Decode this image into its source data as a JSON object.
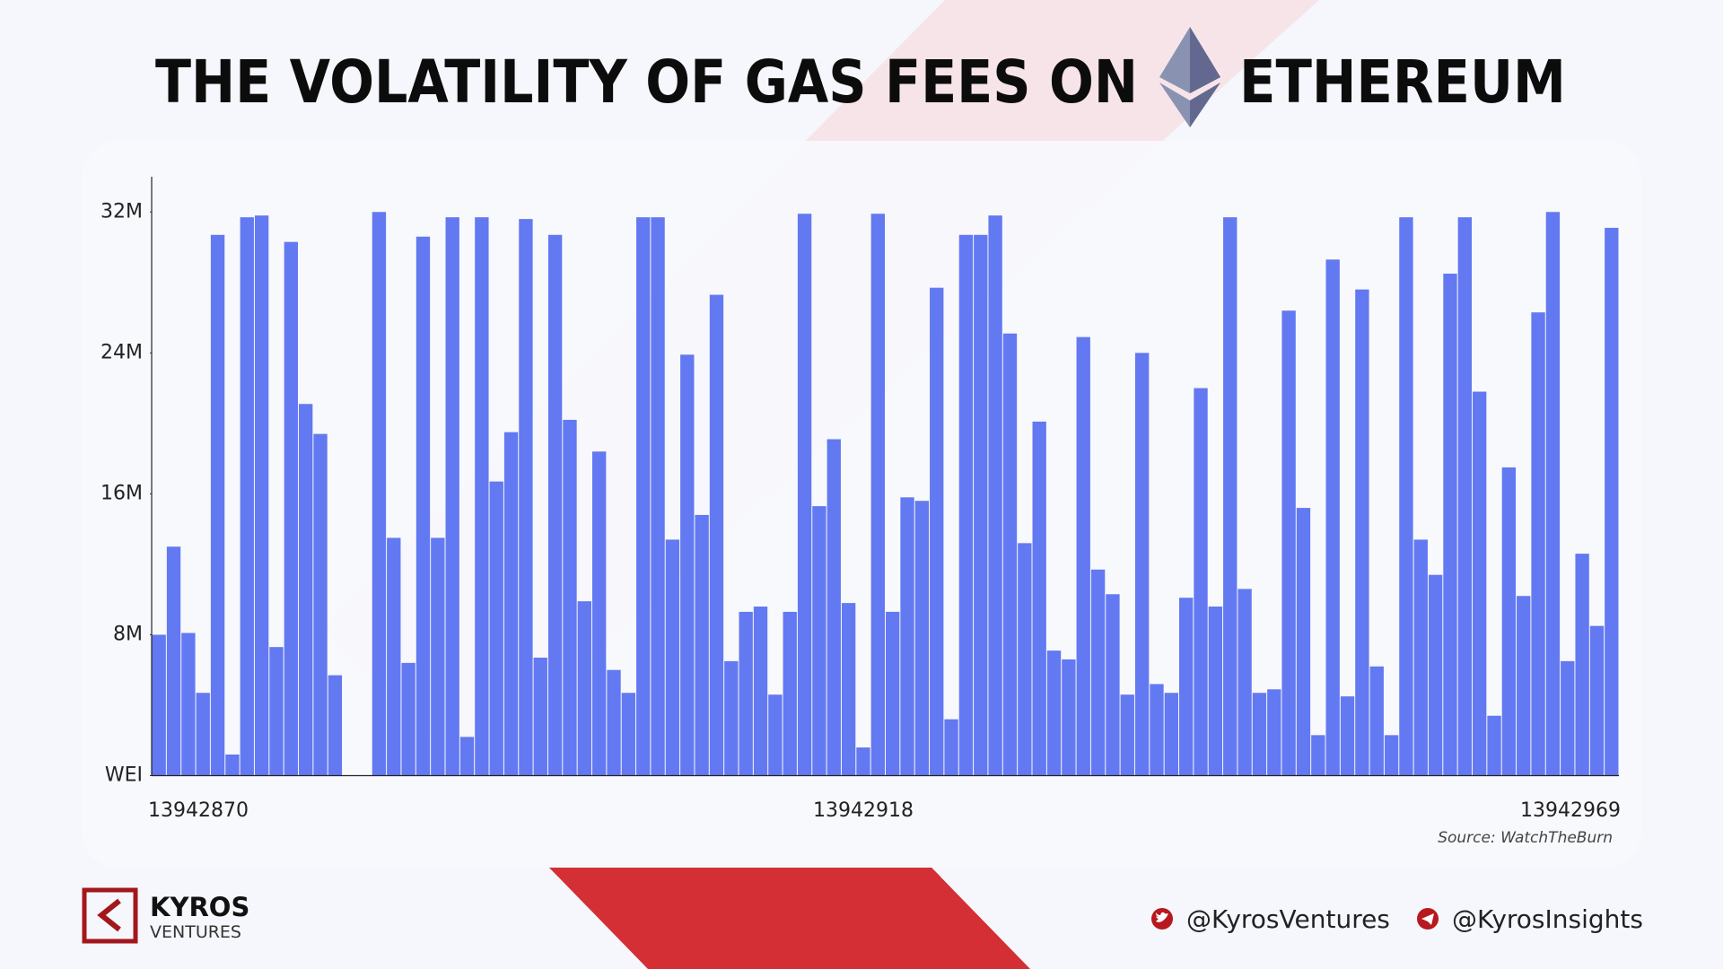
{
  "title_start": "THE VOLATILITY OF GAS FEES ON",
  "title_end": "ETHEREUM",
  "chart_data": {
    "type": "bar",
    "color": "#6379f1",
    "categories": [
      "13942870",
      null,
      null,
      null,
      null,
      null,
      null,
      null,
      null,
      null,
      null,
      null,
      null,
      null,
      null,
      null,
      null,
      null,
      null,
      null,
      null,
      null,
      null,
      null,
      null,
      null,
      null,
      null,
      null,
      null,
      null,
      null,
      null,
      null,
      null,
      null,
      null,
      null,
      null,
      null,
      null,
      null,
      null,
      null,
      null,
      null,
      null,
      null,
      "13942918",
      null,
      null,
      null,
      null,
      null,
      null,
      null,
      null,
      null,
      null,
      null,
      null,
      null,
      null,
      null,
      null,
      null,
      null,
      null,
      null,
      null,
      null,
      null,
      null,
      null,
      null,
      null,
      null,
      null,
      null,
      null,
      null,
      null,
      null,
      null,
      null,
      null,
      null,
      null,
      null,
      null,
      null,
      null,
      null,
      null,
      null,
      null,
      null,
      null,
      null,
      "13942969"
    ],
    "values": [
      8.0,
      13.0,
      8.1,
      4.7,
      30.7,
      1.2,
      31.7,
      31.8,
      7.3,
      30.3,
      21.1,
      19.4,
      5.7,
      null,
      null,
      32.0,
      13.5,
      6.4,
      30.6,
      13.5,
      31.7,
      2.2,
      31.7,
      16.7,
      19.5,
      31.6,
      6.7,
      30.7,
      20.2,
      9.9,
      18.4,
      6.0,
      4.7,
      31.7,
      31.7,
      13.4,
      23.9,
      14.8,
      27.3,
      6.5,
      9.3,
      9.6,
      4.6,
      9.3,
      31.9,
      15.3,
      19.1,
      9.8,
      1.6,
      31.9,
      9.3,
      15.8,
      15.6,
      27.7,
      3.2,
      30.7,
      30.7,
      31.8,
      25.1,
      13.2,
      20.1,
      7.1,
      6.6,
      24.9,
      11.7,
      10.3,
      4.6,
      24.0,
      5.2,
      4.7,
      10.1,
      22.0,
      9.6,
      31.7,
      10.6,
      4.7,
      4.9,
      26.4,
      15.2,
      2.3,
      29.3,
      4.5,
      27.6,
      6.2,
      2.3,
      31.7,
      13.4,
      11.4,
      28.5,
      31.7,
      21.8,
      3.4,
      17.5,
      10.2,
      26.3,
      32.0,
      6.5,
      12.6,
      8.5,
      31.1
    ],
    "ylim": [
      0,
      34
    ],
    "yticks": [
      {
        "value": 0,
        "label": "WEI"
      },
      {
        "value": 8,
        "label": "8M"
      },
      {
        "value": 16,
        "label": "16M"
      },
      {
        "value": 24,
        "label": "24M"
      },
      {
        "value": 32,
        "label": "32M"
      }
    ],
    "source": "Source: WatchTheBurn"
  },
  "brand": {
    "name": "KYROS",
    "tagline": "VENTURES"
  },
  "social": {
    "twitter": "@KyrosVentures",
    "telegram": "@KyrosInsights"
  }
}
